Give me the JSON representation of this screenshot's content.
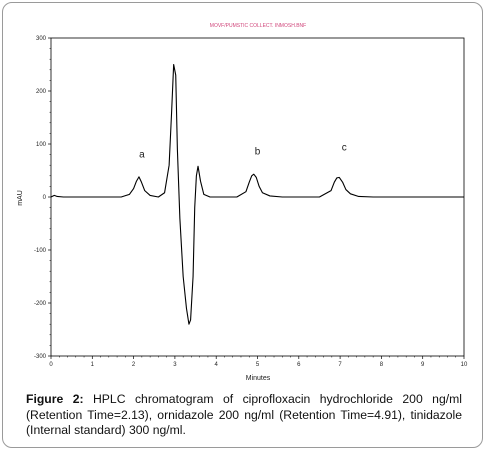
{
  "figure": {
    "header_text": "MOVF/PUMSTIC COLLECT. INMOSH.BNF",
    "caption_label": "Figure 2:",
    "caption_text": " HPLC chromatogram of ciprofloxacin hydrochloride 200 ng/ml (Retention Time=2.13), ornidazole 200 ng/ml (Retention Time=4.91), tinidazole (Internal standard) 300 ng/ml."
  },
  "chart_data": {
    "type": "line",
    "title": "",
    "xlabel": "Minutes",
    "ylabel": "mAU",
    "xlim": [
      0,
      10
    ],
    "ylim": [
      -300,
      300
    ],
    "xticks": [
      "0",
      "1",
      "2",
      "3",
      "4",
      "5",
      "6",
      "7",
      "8",
      "9",
      "10"
    ],
    "yticks": [
      "300",
      "200",
      "100",
      "0",
      "-100",
      "-200",
      "-300"
    ],
    "grid": false,
    "series": [
      {
        "color": "#000000",
        "x": [
          0.0,
          0.08,
          0.15,
          0.3,
          1.0,
          1.7,
          1.9,
          2.0,
          2.07,
          2.13,
          2.19,
          2.27,
          2.4,
          2.6,
          2.75,
          2.86,
          2.92,
          2.97,
          3.02,
          3.06,
          3.12,
          3.2,
          3.28,
          3.34,
          3.38,
          3.44,
          3.48,
          3.52,
          3.56,
          3.62,
          3.7,
          3.85,
          4.1,
          4.5,
          4.72,
          4.8,
          4.86,
          4.91,
          4.97,
          5.04,
          5.12,
          5.3,
          5.6,
          6.0,
          6.5,
          6.78,
          6.86,
          6.92,
          6.98,
          7.06,
          7.14,
          7.25,
          7.45,
          7.8,
          8.5,
          9.2,
          10.0
        ],
        "y": [
          0,
          3,
          1,
          0,
          0,
          0,
          5,
          16,
          30,
          38,
          28,
          12,
          3,
          0,
          8,
          60,
          160,
          250,
          230,
          90,
          -40,
          -150,
          -210,
          -240,
          -232,
          -150,
          -20,
          40,
          58,
          30,
          5,
          0,
          0,
          0,
          10,
          28,
          40,
          43,
          37,
          20,
          8,
          2,
          0,
          0,
          0,
          12,
          28,
          36,
          37,
          28,
          14,
          6,
          1,
          0,
          0,
          0,
          0
        ]
      }
    ],
    "annotations": [
      {
        "text": "a",
        "x": 2.2,
        "y": 75
      },
      {
        "text": "b",
        "x": 5.0,
        "y": 80
      },
      {
        "text": "c",
        "x": 7.1,
        "y": 88
      }
    ]
  }
}
